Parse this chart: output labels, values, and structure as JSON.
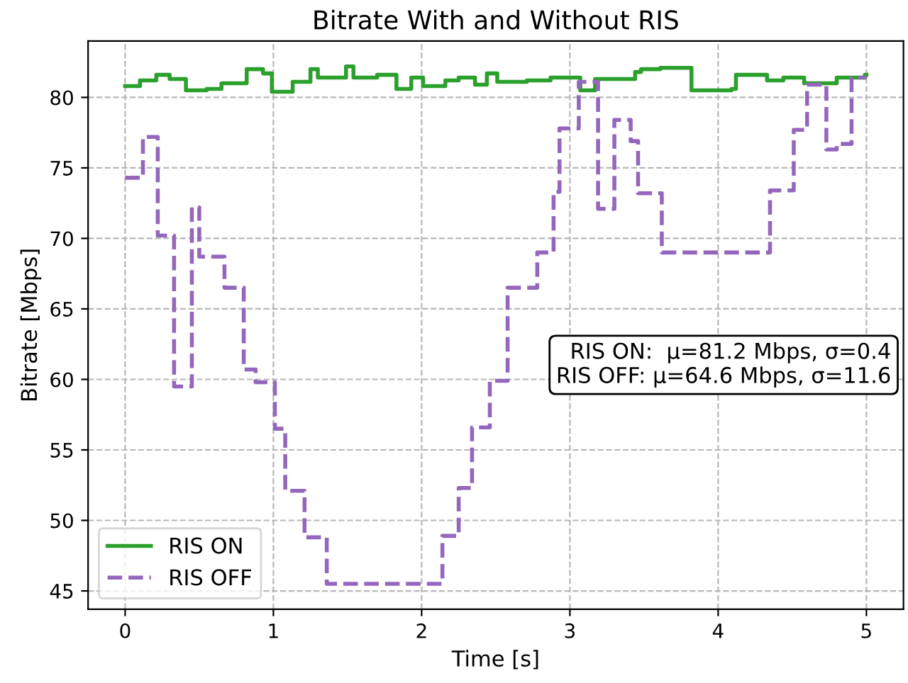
{
  "chart_data": {
    "type": "step",
    "title": "Bitrate With and Without RIS",
    "xlabel": "Time [s]",
    "ylabel": "Bitrate [Mbps]",
    "xlim": [
      -0.25,
      5.25
    ],
    "xticks": [
      0,
      1,
      2,
      3,
      4,
      5
    ],
    "ylim": [
      43.7,
      84.0
    ],
    "yticks": [
      45,
      50,
      55,
      60,
      65,
      70,
      75,
      80
    ],
    "grid": true,
    "legend": "bottom left",
    "marker": "none",
    "annotations": [
      "RIS ON:  μ=81.2 Mbps, σ=0.4\nRIS OFF: μ=64.6 Mbps, σ=11.6"
    ],
    "series": [
      {
        "name": "RIS ON",
        "color": "#2ca02c",
        "line_style": "solid",
        "x": [
          0,
          0.1,
          0.21,
          0.3,
          0.41,
          0.55,
          0.65,
          0.82,
          0.93,
          0.99,
          1.13,
          1.25,
          1.3,
          1.49,
          1.54,
          1.7,
          1.83,
          1.93,
          2.01,
          2.16,
          2.25,
          2.36,
          2.44,
          2.51,
          2.71,
          2.87,
          3.07,
          3.17,
          3.44,
          3.48,
          3.61,
          3.82,
          4.09,
          4.12,
          4.33,
          4.44,
          4.58,
          4.8,
          4.99,
          5.0
        ],
        "values": [
          80.8,
          81.2,
          81.6,
          81.3,
          80.5,
          80.6,
          81.0,
          82.0,
          81.7,
          80.4,
          81.1,
          82.0,
          81.4,
          82.2,
          81.4,
          81.6,
          80.6,
          81.4,
          80.8,
          81.2,
          81.4,
          80.9,
          81.7,
          81.1,
          81.2,
          81.4,
          80.5,
          81.3,
          81.8,
          82.0,
          82.1,
          80.5,
          80.6,
          81.6,
          81.2,
          81.4,
          81.0,
          81.4,
          81.6,
          81.6
        ]
      },
      {
        "name": "RIS OFF",
        "color": "#9467bd",
        "line_style": "dashed",
        "x": [
          0,
          0.12,
          0.22,
          0.33,
          0.45,
          0.5,
          0.67,
          0.8,
          0.88,
          1.01,
          1.08,
          1.21,
          1.36,
          2.14,
          2.25,
          2.34,
          2.46,
          2.58,
          2.78,
          2.89,
          2.93,
          3.06,
          3.19,
          3.3,
          3.41,
          3.46,
          3.62,
          4.35,
          4.51,
          4.6,
          4.73,
          4.8,
          4.9,
          5.0
        ],
        "values": [
          74.3,
          77.2,
          70.2,
          59.5,
          72.2,
          68.7,
          66.5,
          60.7,
          59.8,
          56.5,
          52.1,
          48.8,
          45.5,
          48.9,
          52.3,
          56.6,
          59.9,
          66.5,
          69.0,
          73.3,
          77.8,
          81.1,
          72.1,
          78.4,
          76.9,
          73.2,
          69.0,
          73.4,
          77.7,
          80.9,
          76.3,
          76.7,
          81.4,
          81.4
        ]
      }
    ]
  }
}
